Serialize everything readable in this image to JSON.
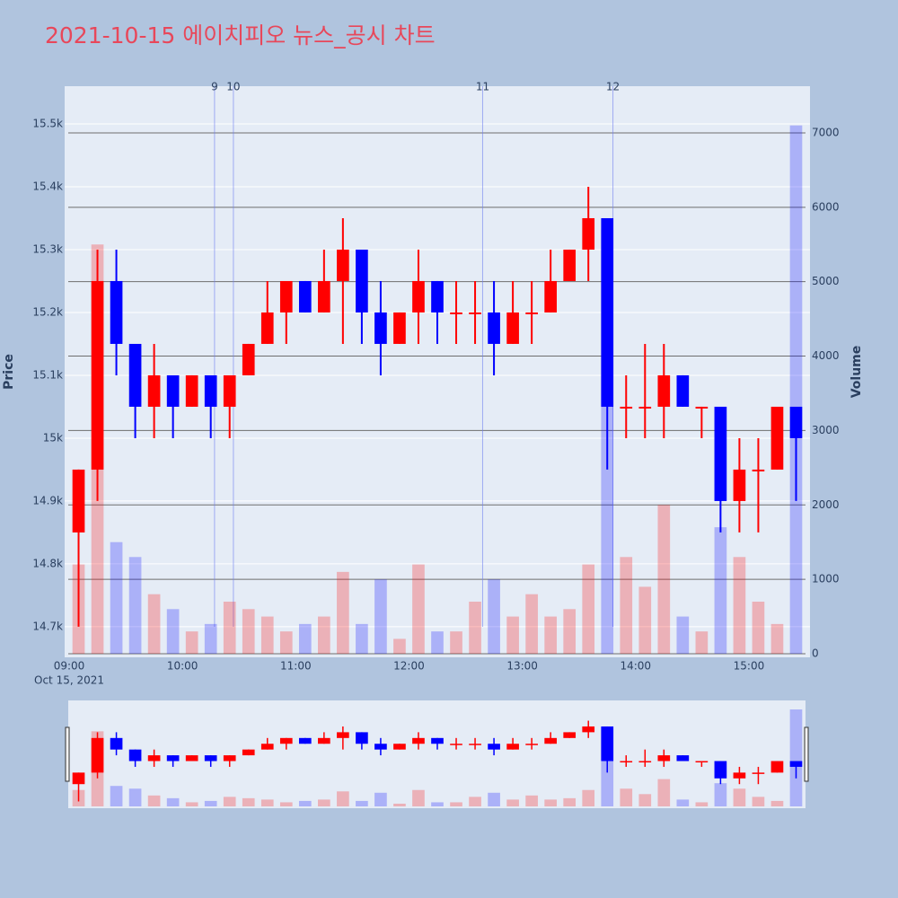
{
  "chart_data": {
    "type": "candlestick",
    "title": "2021-10-15 에이치피오 뉴스_공시 차트",
    "ylabel": "Price",
    "y2label": "Volume",
    "x": [
      "09:00",
      "09:10",
      "09:20",
      "09:30",
      "09:40",
      "09:50",
      "10:00",
      "10:10",
      "10:20",
      "10:30",
      "10:40",
      "10:50",
      "11:00",
      "11:10",
      "11:20",
      "11:30",
      "11:40",
      "11:50",
      "12:00",
      "12:10",
      "12:20",
      "12:30",
      "12:40",
      "12:50",
      "13:00",
      "13:10",
      "13:20",
      "13:30",
      "13:40",
      "13:50",
      "14:00",
      "14:10",
      "14:20",
      "14:30",
      "14:40",
      "14:50",
      "15:00",
      "15:10",
      "15:20"
    ],
    "open": [
      14850,
      14950,
      15250,
      15150,
      15050,
      15100,
      15050,
      15100,
      15050,
      15100,
      15150,
      15200,
      15250,
      15200,
      15250,
      15300,
      15200,
      15150,
      15200,
      15250,
      15200,
      15200,
      15200,
      15150,
      15200,
      15200,
      15250,
      15300,
      15350,
      15050,
      15050,
      15050,
      15100,
      15050,
      15050,
      14900,
      14950,
      14950,
      15050
    ],
    "high": [
      14950,
      15300,
      15300,
      15150,
      15150,
      15100,
      15100,
      15100,
      15100,
      15150,
      15250,
      15250,
      15250,
      15300,
      15350,
      15300,
      15250,
      15200,
      15300,
      15250,
      15250,
      15250,
      15250,
      15250,
      15250,
      15300,
      15300,
      15400,
      15350,
      15100,
      15150,
      15150,
      15100,
      15050,
      15050,
      15000,
      15000,
      15050,
      15050
    ],
    "low": [
      14700,
      14900,
      15100,
      15000,
      15000,
      15000,
      15050,
      15000,
      15000,
      15100,
      15150,
      15150,
      15200,
      15200,
      15150,
      15150,
      15100,
      15150,
      15150,
      15150,
      15150,
      15150,
      15100,
      15150,
      15150,
      15200,
      15250,
      15250,
      14950,
      15000,
      15000,
      15000,
      15050,
      15000,
      14850,
      14850,
      14850,
      14950,
      14900
    ],
    "close": [
      14950,
      15250,
      15150,
      15050,
      15100,
      15050,
      15100,
      15050,
      15100,
      15150,
      15200,
      15250,
      15200,
      15250,
      15300,
      15200,
      15150,
      15200,
      15250,
      15200,
      15200,
      15200,
      15150,
      15200,
      15200,
      15250,
      15300,
      15350,
      15050,
      15050,
      15050,
      15100,
      15050,
      15050,
      14900,
      14950,
      14950,
      15050,
      15000
    ],
    "volume": [
      1200,
      5500,
      1500,
      1300,
      800,
      600,
      300,
      400,
      700,
      600,
      500,
      300,
      400,
      500,
      1100,
      400,
      1000,
      200,
      1200,
      300,
      300,
      700,
      1000,
      500,
      800,
      500,
      600,
      1200,
      5700,
      1300,
      900,
      2000,
      500,
      300,
      1700,
      1300,
      700,
      400,
      7100
    ],
    "increasing_color": "#ff0000",
    "decreasing_color": "#0000ff",
    "xlim": [
      "09:00",
      "15:30"
    ],
    "xticks": [
      "09:00",
      "10:00",
      "11:00",
      "12:00",
      "13:00",
      "14:00",
      "15:00"
    ],
    "x_sublabel": "Oct 15, 2021",
    "ylim": [
      14657,
      15560
    ],
    "yticks": [
      {
        "value": 14700,
        "label": "14.7k"
      },
      {
        "value": 14800,
        "label": "14.8k"
      },
      {
        "value": 14900,
        "label": "14.9k"
      },
      {
        "value": 15000,
        "label": "15k"
      },
      {
        "value": 15100,
        "label": "15.1k"
      },
      {
        "value": 15200,
        "label": "15.2k"
      },
      {
        "value": 15300,
        "label": "15.3k"
      },
      {
        "value": 15400,
        "label": "15.4k"
      },
      {
        "value": 15500,
        "label": "15.5k"
      }
    ],
    "y2lim": [
      0,
      7627
    ],
    "y2ticks": [
      0,
      1000,
      2000,
      3000,
      4000,
      5000,
      6000,
      7000
    ],
    "annotations": [
      {
        "x": "10:17",
        "label": "9"
      },
      {
        "x": "10:27",
        "label": "10"
      },
      {
        "x": "12:39",
        "label": "11"
      },
      {
        "x": "13:48",
        "label": "12"
      }
    ],
    "grid": true,
    "rangeslider": true
  }
}
